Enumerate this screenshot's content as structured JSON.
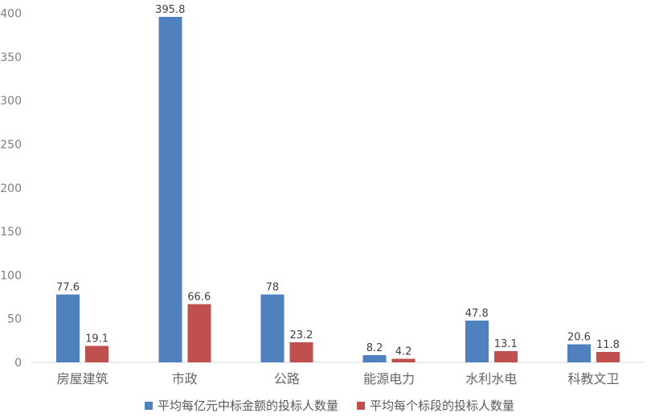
{
  "chart_data": {
    "type": "bar",
    "title": "",
    "xlabel": "",
    "ylabel": "",
    "categories": [
      "房屋建筑",
      "市政",
      "公路",
      "能源电力",
      "水利水电",
      "科教文卫"
    ],
    "series": [
      {
        "name": "平均每亿元中标金额的投标人数量",
        "color": "#4E81BD",
        "values": [
          77.6,
          395.8,
          78,
          8.2,
          47.8,
          20.6
        ],
        "value_labels": [
          "77.6",
          "395.8",
          "78",
          "8.2",
          "47.8",
          "20.6"
        ]
      },
      {
        "name": "平均每个标段的投标人数量",
        "color": "#C0504D",
        "values": [
          19.1,
          66.6,
          23.2,
          4.2,
          13.1,
          11.8
        ],
        "value_labels": [
          "19.1",
          "66.6",
          "23.2",
          "4.2",
          "13.1",
          "11.8"
        ]
      }
    ],
    "ylim": [
      0,
      400
    ],
    "ytick_step": 50,
    "yticks": [
      0,
      50,
      100,
      150,
      200,
      250,
      300,
      350,
      400
    ],
    "grid": false,
    "data_labels_shown": true,
    "legend_position": "bottom",
    "axis_line_color": "#D9D9D9"
  }
}
